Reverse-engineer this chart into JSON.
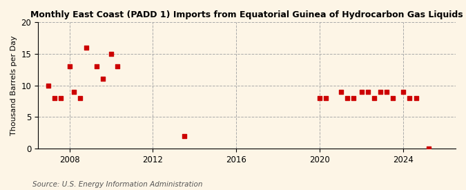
{
  "title": "Monthly East Coast (PADD 1) Imports from Equatorial Guinea of Hydrocarbon Gas Liquids",
  "ylabel": "Thousand Barrels per Day",
  "source": "Source: U.S. Energy Information Administration",
  "background_color": "#fdf5e6",
  "marker_color": "#cc0000",
  "xlim": [
    2006.5,
    2026.5
  ],
  "ylim": [
    0,
    20
  ],
  "yticks": [
    0,
    5,
    10,
    15,
    20
  ],
  "xticks": [
    2008,
    2012,
    2016,
    2020,
    2024
  ],
  "data_x": [
    2007.0,
    2007.3,
    2007.6,
    2008.0,
    2008.2,
    2008.5,
    2008.8,
    2009.3,
    2009.6,
    2010.0,
    2010.3,
    2013.5,
    2020.0,
    2020.3,
    2021.0,
    2021.3,
    2021.6,
    2022.0,
    2022.3,
    2022.6,
    2022.9,
    2023.2,
    2023.5,
    2024.0,
    2024.3,
    2024.6,
    2025.2
  ],
  "data_y": [
    10,
    8,
    8,
    13,
    9,
    8,
    16,
    13,
    11,
    15,
    13,
    2,
    8,
    8,
    9,
    8,
    8,
    9,
    9,
    8,
    9,
    9,
    8,
    9,
    8,
    8,
    0
  ],
  "title_fontsize": 9,
  "ylabel_fontsize": 8,
  "tick_fontsize": 8.5,
  "source_fontsize": 7.5,
  "marker_size": 15
}
